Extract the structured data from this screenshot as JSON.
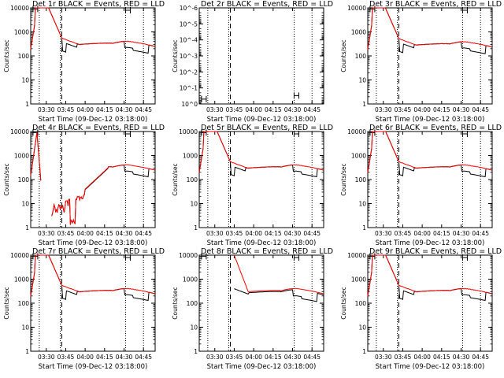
{
  "page": {
    "background": "#ffffff"
  },
  "colors": {
    "events": "#000000",
    "lld": "#ff0000",
    "axes": "#000000"
  },
  "chart_data": [
    {
      "type": "line",
      "title": "Det 1r BLACK = Events, RED = LLD",
      "xlabel": "Start Time (09-Dec-12 03:18:00)",
      "ylabel": "Counts/sec",
      "ylog": true,
      "ylim": [
        1,
        10000
      ],
      "xlim": [
        3.3,
        4.9
      ],
      "xticks": [
        "03:30",
        "03:45",
        "04:00",
        "04:15",
        "04:30",
        "04:45"
      ],
      "yticks": [
        "1",
        "10",
        "100",
        "1000",
        "10000"
      ],
      "events_visible": true,
      "lld_visible": true,
      "dotted_vlines": [
        3.41,
        3.68,
        4.52,
        4.75
      ],
      "dashed_vlines": [
        3.7
      ],
      "bar_markers": [
        {
          "x": 3.36,
          "y": 9000
        },
        {
          "x": 4.55,
          "y": 8000
        }
      ],
      "series": []
    },
    {
      "type": "line",
      "title": "Det 2r BLACK = Events, RED = LLD",
      "xlabel": "Start Time (09-Dec-12 03:18:00)",
      "ylabel": "Counts/sec",
      "ylog": true,
      "ylim": [
        1,
        1e-06
      ],
      "xlim": [
        3.3,
        4.9
      ],
      "xticks": [
        "03:30",
        "03:45",
        "04:00",
        "04:15",
        "04:30",
        "04:45"
      ],
      "yticks": [
        "10^-6",
        "10^-5",
        "10^-4",
        "10^-3",
        "10^-2",
        "10^-1",
        "10^0"
      ],
      "events_visible": false,
      "lld_visible": false,
      "dotted_vlines": [
        3.41,
        3.68,
        4.52,
        4.75
      ],
      "dashed_vlines": [
        3.7
      ],
      "bar_markers": [
        {
          "x": 3.36,
          "y": 0.5
        },
        {
          "x": 4.55,
          "y": 0.3
        }
      ],
      "series": []
    },
    {
      "type": "line",
      "title": "Det 3r BLACK = Events, RED = LLD",
      "xlabel": "Start Time (09-Dec-12 03:18:00)",
      "ylabel": "Counts/sec",
      "ylog": true,
      "ylim": [
        1,
        10000
      ],
      "xlim": [
        3.3,
        4.9
      ],
      "xticks": [
        "03:30",
        "03:45",
        "04:00",
        "04:15",
        "04:30",
        "04:45"
      ],
      "yticks": [
        "1",
        "10",
        "100",
        "1000",
        "10000"
      ],
      "events_visible": true,
      "lld_visible": true,
      "dotted_vlines": [
        3.41,
        3.68,
        4.52,
        4.75
      ],
      "dashed_vlines": [
        3.7
      ],
      "bar_markers": [
        {
          "x": 3.36,
          "y": 9000
        },
        {
          "x": 4.55,
          "y": 8000
        }
      ],
      "series": []
    },
    {
      "type": "line",
      "title": "Det 4r BLACK = Events, RED = LLD",
      "xlabel": "Start Time (09-Dec-12 03:18:00)",
      "ylabel": "Counts/sec",
      "ylog": true,
      "ylim": [
        1,
        10000
      ],
      "xlim": [
        3.3,
        4.9
      ],
      "xticks": [
        "03:30",
        "03:45",
        "04:00",
        "04:15",
        "04:30",
        "04:45"
      ],
      "yticks": [
        "1",
        "10",
        "100",
        "1000",
        "10000"
      ],
      "events_visible": true,
      "lld_visible": true,
      "dotted_vlines": [
        3.41,
        3.68,
        4.52,
        4.75
      ],
      "dashed_vlines": [
        3.7
      ],
      "bar_markers": [
        {
          "x": 3.36,
          "y": 9000
        },
        {
          "x": 4.55,
          "y": 8000
        }
      ],
      "series": []
    },
    {
      "type": "line",
      "title": "Det 5r BLACK = Events, RED = LLD",
      "xlabel": "Start Time (09-Dec-12 03:18:00)",
      "ylabel": "Counts/sec",
      "ylog": true,
      "ylim": [
        1,
        10000
      ],
      "xlim": [
        3.3,
        4.9
      ],
      "xticks": [
        "03:30",
        "03:45",
        "04:00",
        "04:15",
        "04:30",
        "04:45"
      ],
      "yticks": [
        "1",
        "10",
        "100",
        "1000",
        "10000"
      ],
      "events_visible": true,
      "lld_visible": true,
      "dotted_vlines": [
        3.41,
        3.68,
        4.52,
        4.75
      ],
      "dashed_vlines": [
        3.7
      ],
      "bar_markers": [
        {
          "x": 3.36,
          "y": 9000
        },
        {
          "x": 4.55,
          "y": 8000
        }
      ],
      "series": []
    },
    {
      "type": "line",
      "title": "Det 6r BLACK = Events, RED = LLD",
      "xlabel": "Start Time (09-Dec-12 03:18:00)",
      "ylabel": "Counts/sec",
      "ylog": true,
      "ylim": [
        1,
        10000
      ],
      "xlim": [
        3.3,
        4.9
      ],
      "xticks": [
        "03:30",
        "03:45",
        "04:00",
        "04:15",
        "04:30",
        "04:45"
      ],
      "yticks": [
        "1",
        "10",
        "100",
        "1000",
        "10000"
      ],
      "events_visible": true,
      "lld_visible": true,
      "dotted_vlines": [
        3.41,
        3.68,
        4.52,
        4.75
      ],
      "dashed_vlines": [
        3.7
      ],
      "bar_markers": [
        {
          "x": 3.36,
          "y": 9000
        },
        {
          "x": 4.55,
          "y": 8000
        }
      ],
      "series": []
    },
    {
      "type": "line",
      "title": "Det 7r BLACK = Events, RED = LLD",
      "xlabel": "Start Time (09-Dec-12 03:18:00)",
      "ylabel": "Counts/sec",
      "ylog": true,
      "ylim": [
        1,
        10000
      ],
      "xlim": [
        3.3,
        4.9
      ],
      "xticks": [
        "03:30",
        "03:45",
        "04:00",
        "04:15",
        "04:30",
        "04:45"
      ],
      "yticks": [
        "1",
        "10",
        "100",
        "1000",
        "10000"
      ],
      "events_visible": true,
      "lld_visible": true,
      "dotted_vlines": [
        3.41,
        3.68,
        4.52,
        4.75
      ],
      "dashed_vlines": [
        3.7
      ],
      "bar_markers": [
        {
          "x": 3.36,
          "y": 9000
        },
        {
          "x": 4.55,
          "y": 8000
        }
      ],
      "series": []
    },
    {
      "type": "line",
      "title": "Det 8r BLACK = Events, RED = LLD",
      "xlabel": "Start Time (09-Dec-12 03:18:00)",
      "ylabel": "Counts/sec",
      "ylog": true,
      "ylim": [
        1,
        10000
      ],
      "xlim": [
        3.3,
        4.9
      ],
      "xticks": [
        "03:30",
        "03:45",
        "04:00",
        "04:15",
        "04:30",
        "04:45"
      ],
      "yticks": [
        "1",
        "10",
        "100",
        "1000",
        "10000"
      ],
      "events_visible": true,
      "lld_visible": true,
      "dotted_vlines": [
        3.41,
        3.68,
        4.52,
        4.75
      ],
      "dashed_vlines": [
        3.7
      ],
      "bar_markers": [
        {
          "x": 3.36,
          "y": 9000
        },
        {
          "x": 4.55,
          "y": 8000
        }
      ],
      "series": []
    },
    {
      "type": "line",
      "title": "Det 9r BLACK = Events, RED = LLD",
      "xlabel": "Start Time (09-Dec-12 03:18:00)",
      "ylabel": "Counts/sec",
      "ylog": true,
      "ylim": [
        1,
        10000
      ],
      "xlim": [
        3.3,
        4.9
      ],
      "xticks": [
        "03:30",
        "03:45",
        "04:00",
        "04:15",
        "04:30",
        "04:45"
      ],
      "yticks": [
        "1",
        "10",
        "100",
        "1000",
        "10000"
      ],
      "events_visible": true,
      "lld_visible": true,
      "dotted_vlines": [
        3.41,
        3.68,
        4.52,
        4.75
      ],
      "dashed_vlines": [
        3.7
      ],
      "bar_markers": [
        {
          "x": 3.36,
          "y": 9000
        },
        {
          "x": 4.55,
          "y": 8000
        }
      ],
      "series": []
    }
  ]
}
